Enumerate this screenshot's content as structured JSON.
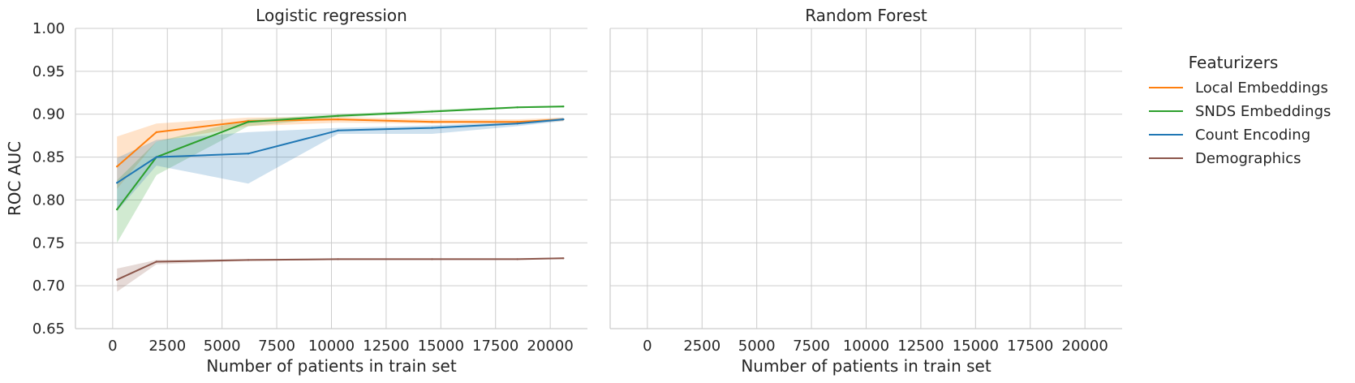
{
  "chart_data": {
    "type": "line",
    "panels": [
      {
        "title": "Logistic regression",
        "has_data": true
      },
      {
        "title": "Random Forest",
        "has_data": false
      }
    ],
    "xlabel": "Number of patients in train set",
    "ylabel": "ROC AUC",
    "xlim": [
      -1700,
      21700
    ],
    "ylim": [
      0.65,
      1.0
    ],
    "x_ticks": [
      0,
      2500,
      5000,
      7500,
      10000,
      12500,
      15000,
      17500,
      20000
    ],
    "y_ticks": [
      0.65,
      0.7,
      0.75,
      0.8,
      0.85,
      0.9,
      0.95,
      1.0
    ],
    "y_tick_labels": [
      "0.65",
      "0.70",
      "0.75",
      "0.80",
      "0.85",
      "0.90",
      "0.95",
      "1.00"
    ],
    "grid": true,
    "legend": {
      "title": "Featurizers",
      "position": "right-outside"
    },
    "x": [
      200,
      2000,
      6200,
      10300,
      14600,
      18500,
      20600
    ],
    "series": [
      {
        "name": "Local Embeddings",
        "color": "#ff7f0e",
        "values": [
          0.839,
          0.879,
          0.892,
          0.894,
          0.891,
          0.891,
          0.894
        ],
        "lower": [
          0.813,
          0.868,
          0.886,
          0.89,
          0.889,
          0.889,
          0.892
        ],
        "upper": [
          0.874,
          0.889,
          0.896,
          0.897,
          0.894,
          0.894,
          0.896
        ]
      },
      {
        "name": "SNDS Embeddings",
        "color": "#2ca02c",
        "values": [
          0.789,
          0.85,
          0.891,
          0.898,
          0.903,
          0.908,
          0.909
        ],
        "lower": [
          0.75,
          0.829,
          0.886,
          0.896,
          0.902,
          0.907,
          0.908
        ],
        "upper": [
          0.823,
          0.868,
          0.894,
          0.9,
          0.905,
          0.909,
          0.91
        ]
      },
      {
        "name": "Count Encoding",
        "color": "#1f77b4",
        "values": [
          0.82,
          0.85,
          0.854,
          0.881,
          0.884,
          0.889,
          0.894
        ],
        "lower": [
          0.787,
          0.84,
          0.819,
          0.877,
          0.877,
          0.886,
          0.892
        ],
        "upper": [
          0.849,
          0.87,
          0.879,
          0.884,
          0.887,
          0.891,
          0.896
        ]
      },
      {
        "name": "Demographics",
        "color": "#8c564b",
        "values": [
          0.707,
          0.728,
          0.73,
          0.731,
          0.731,
          0.731,
          0.732
        ],
        "lower": [
          0.693,
          0.725,
          0.729,
          0.73,
          0.731,
          0.731,
          0.731
        ],
        "upper": [
          0.72,
          0.73,
          0.731,
          0.732,
          0.732,
          0.732,
          0.733
        ]
      }
    ]
  }
}
